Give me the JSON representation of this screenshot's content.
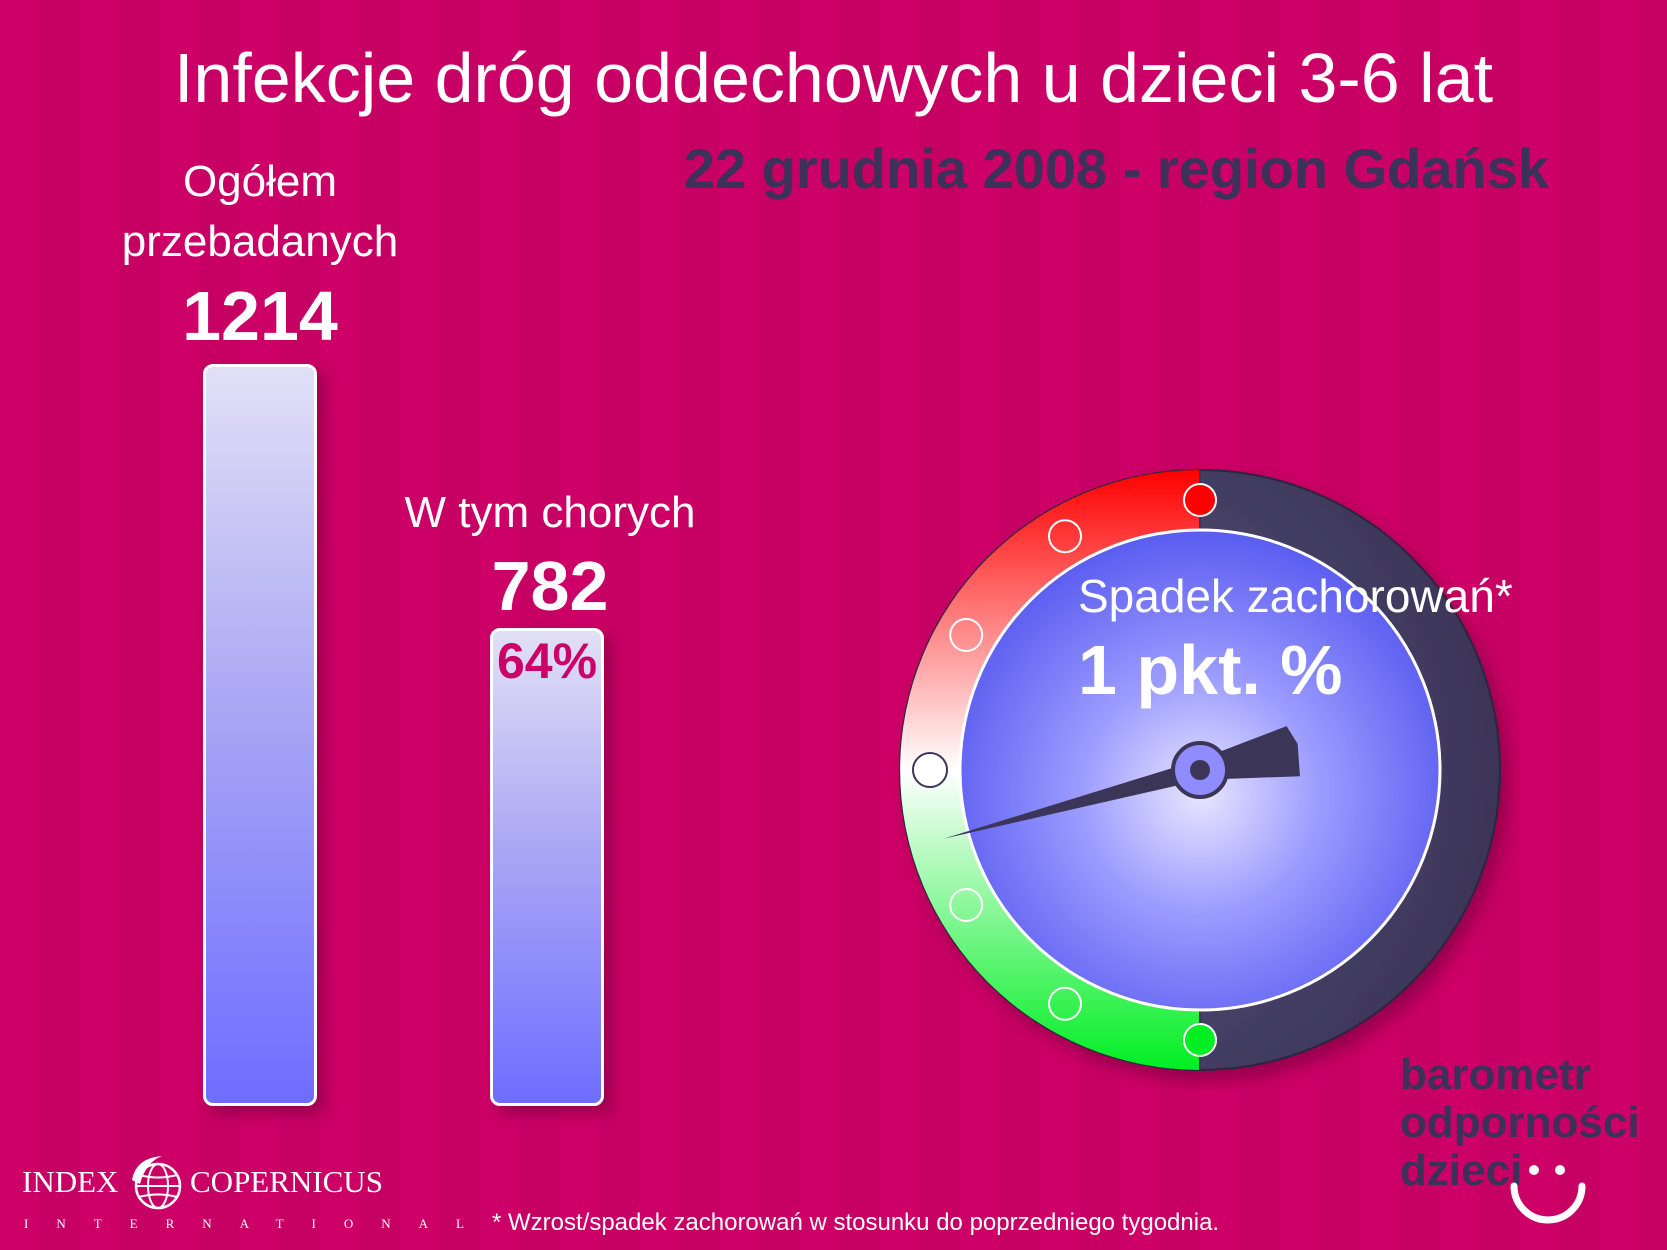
{
  "header": {
    "title": "Infekcje dróg oddechowych u dzieci 3-6 lat",
    "subtitle": "22 grudnia 2008 - region Gdańsk"
  },
  "chart_data": [
    {
      "type": "bar",
      "categories": [
        "Ogółem przebadanych",
        "W tym chorych"
      ],
      "values": [
        1214,
        782
      ],
      "labels": {
        "total_line1": "Ogółem",
        "total_line2": "przebadanych",
        "total_value": "1214",
        "sick": "W tym chorych",
        "sick_value": "782",
        "sick_percent": "64%"
      },
      "ylim": [
        0,
        1214
      ],
      "colors": {
        "bar_top": "#e2e0f6",
        "bar_bottom": "#6e6dff",
        "bar_border": "#ffffff",
        "percent_text": "#cc0066"
      }
    },
    {
      "type": "gauge",
      "label": "Spadek zachorowań*",
      "value_text": "1 pkt. %",
      "direction": "spadek",
      "scale": {
        "min": -6,
        "max": 6,
        "step": 1
      },
      "value": -1,
      "colors": {
        "increase_zone": "#ff0000",
        "decrease_zone": "#00ee22",
        "neutral_zone": "#ffffff",
        "back_ring": "#3b3558",
        "face_center": "#e8e6ff",
        "face_edge": "#5a5cf0",
        "needle": "#3b3558"
      }
    }
  ],
  "footer": {
    "footnote": "* Wzrost/spadek zachorowań w stosunku do poprzedniego tygodnia.",
    "logo_index": "INDEX",
    "logo_copernicus": "COPERNICUS",
    "logo_international": "INTERNATIONAL",
    "barometr": "barometr",
    "odpornosci": "odporności",
    "dzieci": "dzieci"
  },
  "colors": {
    "background": "#cc0066",
    "subtitle": "#3c3158",
    "text": "#ffffff"
  }
}
